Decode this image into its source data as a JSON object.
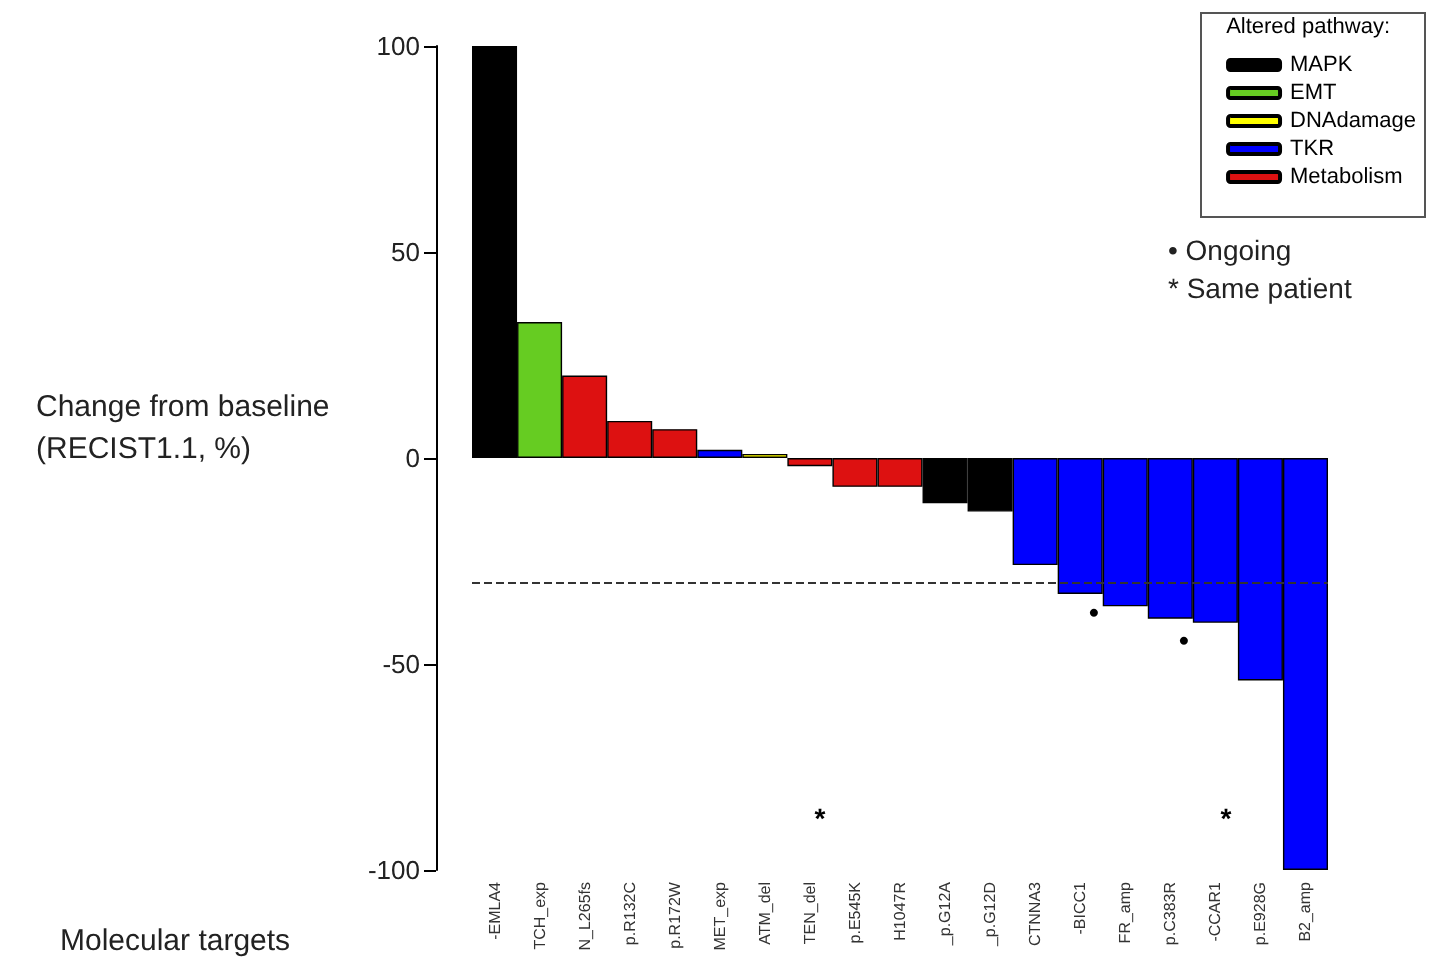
{
  "chart_data": {
    "type": "bar",
    "ylabel": "Change from baseline\n(RECIST1.1, %)",
    "xlabel": "Molecular targets",
    "legend_title": "Altered pathway:",
    "legend": "top right",
    "categories": [
      "-EMLA4",
      "TCH_exp",
      "N_L265fs",
      "p.R132C",
      "p.R172W",
      "MET_exp",
      "ATM_del",
      "TEN_del",
      "p.E545K",
      "H1047R",
      "_p.G12A",
      "_p.G12D",
      "CTNNA3",
      "-BICC1",
      "FR_amp",
      "p.C383R",
      "-CCAR1",
      "p.E928G",
      "B2_amp"
    ],
    "series": [
      {
        "name": "MAPK",
        "color": "#000000",
        "values": [
          100,
          null,
          null,
          null,
          null,
          null,
          null,
          null,
          null,
          null,
          -11,
          -13,
          null,
          null,
          null,
          null,
          null,
          null,
          null
        ]
      },
      {
        "name": "EMT",
        "color": "#66cc22",
        "values": [
          null,
          33,
          null,
          null,
          null,
          null,
          null,
          null,
          null,
          null,
          null,
          null,
          null,
          null,
          null,
          null,
          null,
          null,
          null
        ]
      },
      {
        "name": "DNAdamage",
        "color": "#ffff00",
        "values": [
          null,
          null,
          null,
          null,
          null,
          null,
          1,
          null,
          null,
          null,
          null,
          null,
          null,
          null,
          null,
          null,
          null,
          null,
          null
        ]
      },
      {
        "name": "TKR",
        "color": "#0000ff",
        "values": [
          null,
          null,
          null,
          null,
          null,
          2,
          null,
          null,
          null,
          null,
          null,
          null,
          -26,
          -33,
          -36,
          -39,
          -40,
          -54,
          -100
        ]
      },
      {
        "name": "Metabolism",
        "color": "#dd1111",
        "values": [
          null,
          null,
          20,
          9,
          7,
          null,
          null,
          -2,
          -7,
          -7,
          null,
          null,
          null,
          null,
          null,
          null,
          null,
          null,
          null
        ]
      }
    ],
    "ylim": [
      -100,
      100
    ],
    "yticks": [
      -100,
      -50,
      0,
      50,
      100
    ],
    "ref_lines": [
      {
        "axis": "y",
        "value": -30,
        "line_style": "dashed",
        "color": "#333333"
      }
    ],
    "annotations": [
      "• Ongoing",
      "* Same patient",
      "•",
      "•",
      "*",
      "*"
    ]
  }
}
